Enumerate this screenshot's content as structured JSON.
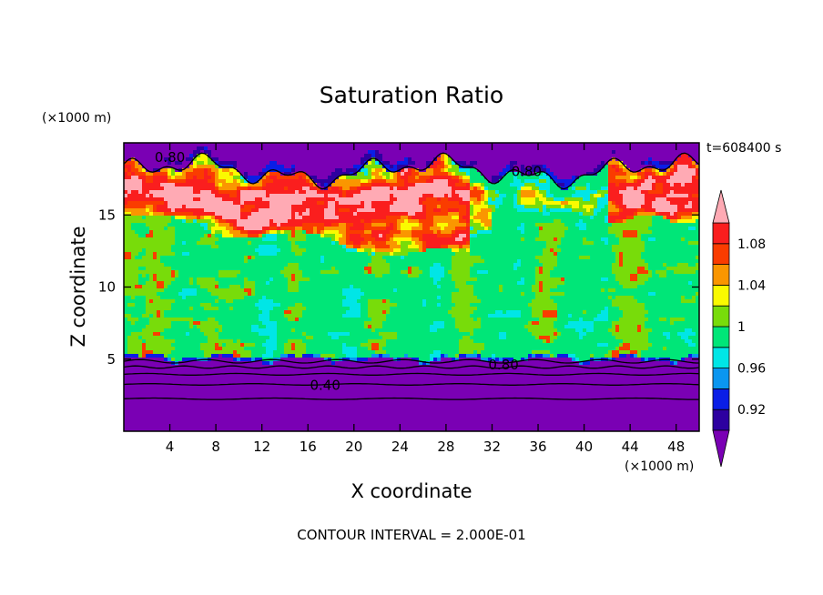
{
  "chart_data": {
    "type": "heatmap",
    "title": "Saturation Ratio",
    "xlabel": "X coordinate",
    "ylabel": "Z coordinate",
    "x_unit": "(×1000 m)",
    "y_unit": "(×1000 m)",
    "time_label": "t=608400 s",
    "footer": "CONTOUR INTERVAL = 2.000E-01",
    "xlim": [
      0,
      50
    ],
    "ylim": [
      0,
      20
    ],
    "x_ticks": [
      4,
      8,
      12,
      16,
      20,
      24,
      28,
      32,
      36,
      40,
      44,
      48
    ],
    "y_ticks": [
      5,
      10,
      15
    ],
    "grid": false,
    "colorbar": {
      "levels": [
        0.9,
        0.92,
        0.94,
        0.96,
        0.98,
        1.0,
        1.02,
        1.04,
        1.06,
        1.08,
        1.1
      ],
      "labels": [
        "0.92",
        "0.96",
        "1",
        "1.04",
        "1.08"
      ],
      "colors": [
        "#7a00b4",
        "#2d00a0",
        "#0a1ee6",
        "#0a96f0",
        "#00e6e6",
        "#00e678",
        "#78dc0a",
        "#fafa00",
        "#fa9600",
        "#fa3c00",
        "#fa1e1e",
        "#ffaab4"
      ],
      "extend": "both"
    },
    "contour_labels": [
      {
        "text": "0.80",
        "x": 4.0,
        "y": 19.0
      },
      {
        "text": "0.80",
        "x": 35.0,
        "y": 18.0
      },
      {
        "text": "0.80",
        "x": 33.0,
        "y": 4.6
      },
      {
        "text": "0.40",
        "x": 17.5,
        "y": 3.2
      }
    ]
  }
}
